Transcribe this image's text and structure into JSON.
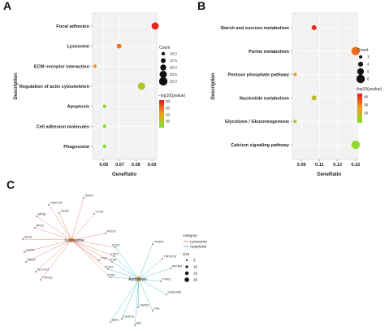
{
  "panels": {
    "A": "A",
    "B": "B",
    "C": "C"
  },
  "chart_data": [
    {
      "type": "scatter",
      "panel": "A",
      "xlabel": "GeneRatio",
      "ylabel": "Description",
      "x_ticks": [
        "0.06",
        "0.07",
        "0.08",
        "0.09"
      ],
      "xlim": [
        0.053,
        0.093
      ],
      "grid": true,
      "categories": [
        "Focal adhesion",
        "Lysosome",
        "ECM−receptor interaction",
        "Regulation of actin cytoskeleton",
        "Apoptosis",
        "Cell adhesion molecules",
        "Phagosome"
      ],
      "points": [
        {
          "category": "Focal adhesion",
          "x": 0.092,
          "count": 22.5,
          "neglog10p": 60
        },
        {
          "category": "Lysosome",
          "x": 0.0695,
          "count": 17.5,
          "neglog10p": 48
        },
        {
          "category": "ECM−receptor interaction",
          "x": 0.0545,
          "count": 14,
          "neglog10p": 45
        },
        {
          "category": "Regulation of actin cytoskeleton",
          "x": 0.0835,
          "count": 22.5,
          "neglog10p": 30
        },
        {
          "category": "Apoptosis",
          "x": 0.0605,
          "count": 15,
          "neglog10p": 25
        },
        {
          "category": "Cell adhesion molecules",
          "x": 0.0605,
          "count": 15,
          "neglog10p": 22
        },
        {
          "category": "Phagosome",
          "x": 0.0605,
          "count": 15,
          "neglog10p": 20
        }
      ],
      "size_legend": {
        "title": "Count",
        "values": [
          "15.0",
          "17.5",
          "20.0",
          "22.5",
          "25.0"
        ]
      },
      "color_legend": {
        "title": "−log10(pvalue)",
        "ticks": [
          "60",
          "50",
          "40",
          "30"
        ],
        "range": [
          20,
          62
        ]
      }
    },
    {
      "type": "scatter",
      "panel": "B",
      "xlabel": "GeneRatio",
      "ylabel": "Description",
      "x_ticks": [
        "0.09",
        "0.11",
        "0.13",
        "0.15"
      ],
      "xlim": [
        0.08,
        0.152
      ],
      "grid": true,
      "categories": [
        "Starch and sucrose metabolism",
        "Purine metabolism",
        "Pentose phosphate pathway",
        "Nucleotide metabolism",
        "Glycolysis / Gluconeogenesis",
        "Calcium signaling pathway"
      ],
      "points": [
        {
          "category": "Starch and sucrose metabolism",
          "x": 0.104,
          "count": 4,
          "neglog10p": 41
        },
        {
          "category": "Purine metabolism",
          "x": 0.15,
          "count": 6,
          "neglog10p": 33
        },
        {
          "category": "Pentose phosphate pathway",
          "x": 0.083,
          "count": 3,
          "neglog10p": 28
        },
        {
          "category": "Nucleotide metabolism",
          "x": 0.104,
          "count": 4,
          "neglog10p": 18
        },
        {
          "category": "Glycolysis / Gluconeogenesis",
          "x": 0.083,
          "count": 3,
          "neglog10p": 13
        },
        {
          "category": "Calcium signaling pathway",
          "x": 0.15,
          "count": 6,
          "neglog10p": 10
        }
      ],
      "size_legend": {
        "title": "Count",
        "values": [
          "3",
          "4",
          "5",
          "6"
        ]
      },
      "color_legend": {
        "title": "−log10(pvalue)",
        "ticks": [
          "40",
          "30",
          "20"
        ],
        "range": [
          8,
          44
        ]
      }
    }
  ],
  "network": {
    "panel": "C",
    "hubs": [
      "Lysosome",
      "Apoptosis"
    ],
    "lysosome_genes": [
      "LAMTOR",
      "GGA3",
      "SGSH",
      "CTSA",
      "ARSB",
      "AP1S3",
      "NPC2",
      "HEXA",
      "LIGAN",
      "NAGA",
      "SLC11A1",
      "TCIRG1",
      "ITGB"
    ],
    "shared_genes": [
      "CTSC",
      "CTSS",
      "CTSK",
      "CTSH",
      "CTSD"
    ],
    "apoptosis_genes": [
      "PIK3R1",
      "TNFSF10",
      "NFKBIA",
      "ITPR3",
      "GADD45B",
      "FAS",
      "CAPN2",
      "CASP10",
      "BAK1",
      "BID"
    ],
    "legend": {
      "category_title": "category",
      "categories": [
        "Lysosome",
        "Apoptosis"
      ],
      "size_title": "size",
      "size_values": [
        "5",
        "10",
        "15",
        "20"
      ]
    }
  }
}
